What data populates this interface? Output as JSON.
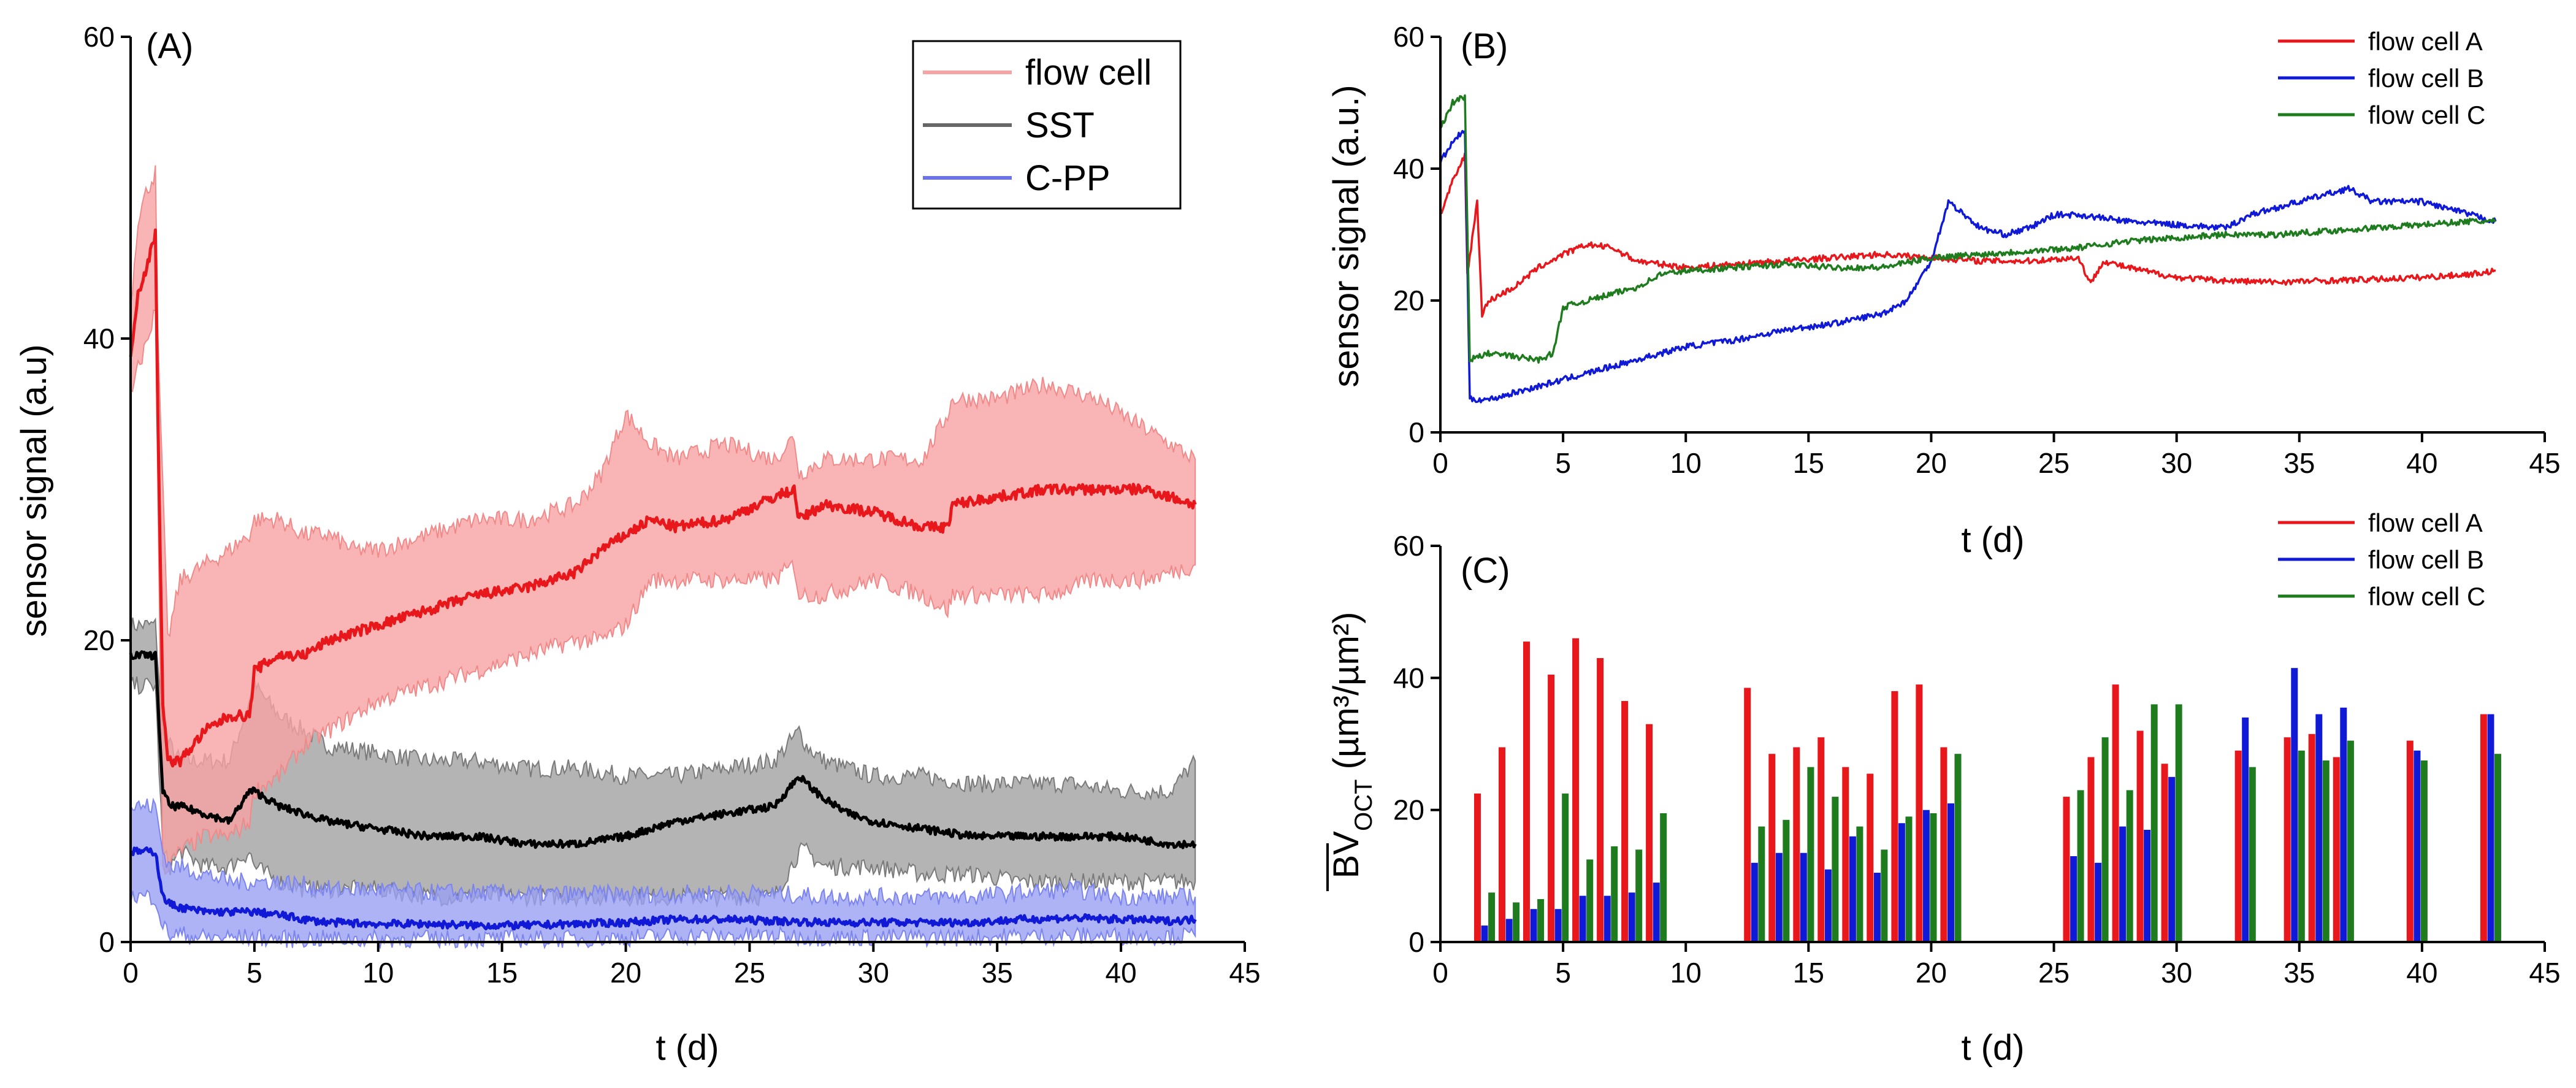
{
  "colors": {
    "red": "#e8171b",
    "red_band": "#f7a3a3",
    "black": "#000000",
    "grey_band": "#9b9b9b",
    "blue": "#1019d6",
    "blue_band": "#9aa0f2",
    "green": "#1e7b1e"
  },
  "chart_data": [
    {
      "id": "A",
      "type": "area",
      "panel_label": "(A)",
      "xlabel": "t (d)",
      "ylabel": "sensor signal (a.u)",
      "xlim": [
        0,
        45
      ],
      "ylim": [
        0,
        60
      ],
      "xticks": [
        0,
        5,
        10,
        15,
        20,
        25,
        30,
        35,
        40,
        45
      ],
      "yticks": [
        0,
        20,
        40,
        60
      ],
      "xtick_labels": [
        "0",
        "5",
        "10",
        "15",
        "20",
        "25",
        "30",
        "35",
        "40",
        "45"
      ],
      "ytick_labels": [
        "0",
        "20",
        "40",
        "60"
      ],
      "legend": [
        "flow cell",
        "SST",
        "C-PP"
      ],
      "legend_position": "top-right",
      "series": [
        {
          "name": "flow cell",
          "x": [
            0,
            0.3,
            0.7,
            1.0,
            1.1,
            1.3,
            1.5,
            2,
            3,
            4,
            4.8,
            5,
            6,
            7,
            8,
            9,
            10,
            12,
            14,
            16,
            18,
            19,
            20,
            21,
            22,
            24,
            26,
            26.8,
            27,
            28,
            30,
            32,
            33,
            33.2,
            35,
            37,
            39,
            41,
            43
          ],
          "mean": [
            39,
            43,
            45,
            47,
            35,
            16,
            12,
            12,
            14,
            15,
            15,
            18,
            19,
            19,
            20,
            20.5,
            21,
            22,
            23,
            23.5,
            24.5,
            26,
            27,
            28,
            27.5,
            28,
            29.5,
            30,
            28,
            29,
            28.5,
            27.5,
            27.5,
            29,
            29.5,
            30,
            30,
            30,
            29
          ],
          "upper": [
            42,
            48,
            50,
            51,
            40,
            30,
            20,
            24,
            25,
            26,
            27,
            28,
            28,
            27,
            27,
            26,
            26,
            27,
            28,
            28,
            29,
            31,
            35,
            33,
            32,
            33,
            32,
            33.5,
            31,
            32,
            32,
            32,
            35,
            36,
            36,
            37,
            36,
            34,
            32
          ],
          "lower": [
            36,
            38,
            40,
            42,
            30,
            5,
            5,
            6,
            7,
            7,
            8,
            10,
            11,
            13,
            14,
            15,
            16,
            17,
            18,
            19,
            20,
            20,
            21,
            24,
            24,
            24,
            24,
            25,
            23,
            23,
            24,
            23,
            22,
            23,
            23,
            23,
            24,
            24,
            25
          ]
        },
        {
          "name": "SST",
          "x": [
            0,
            0.5,
            1.0,
            1.3,
            1.6,
            2,
            3,
            4,
            4.8,
            5,
            6,
            7,
            8,
            10,
            12,
            14,
            16,
            18,
            20,
            22,
            24,
            26,
            27,
            27.3,
            28,
            29,
            30,
            32,
            34,
            36,
            38,
            40,
            42,
            43
          ],
          "mean": [
            19,
            19,
            19,
            10,
            9,
            9,
            8.5,
            8,
            10,
            10,
            9,
            8.5,
            8,
            7.5,
            7,
            7,
            6.5,
            6.5,
            7,
            8,
            8.5,
            9,
            11,
            10.5,
            9.5,
            8.5,
            8,
            7.5,
            7,
            7,
            7,
            7,
            6.5,
            6.5
          ],
          "upper": [
            21,
            21,
            21,
            14,
            13,
            12,
            12,
            12,
            16,
            17,
            15,
            14,
            13,
            12.5,
            12,
            12,
            11.5,
            11.5,
            11,
            11,
            11.5,
            12,
            14,
            13,
            12,
            11.5,
            11,
            11,
            10.5,
            10.5,
            10.5,
            10,
            10,
            12
          ],
          "lower": [
            17,
            17,
            17,
            6,
            5,
            6,
            5,
            5,
            6,
            5,
            4,
            3.5,
            3.5,
            3.5,
            3,
            3,
            3,
            3,
            3,
            3,
            3,
            3,
            6,
            6,
            5,
            5,
            5,
            4.5,
            4.5,
            4,
            4,
            4,
            4,
            4
          ]
        },
        {
          "name": "C-PP",
          "x": [
            0,
            0.5,
            1.0,
            1.3,
            1.6,
            2,
            3,
            4,
            5,
            6,
            7,
            8,
            10,
            12,
            14,
            16,
            18,
            20,
            22,
            24,
            26,
            28,
            30,
            32,
            34,
            36,
            38,
            40,
            42,
            43
          ],
          "mean": [
            6,
            6,
            6,
            3,
            2.5,
            2.3,
            2,
            2,
            2,
            1.8,
            1.5,
            1.3,
            1.2,
            1.2,
            1.1,
            1.1,
            1.2,
            1.3,
            1.5,
            1.5,
            1.4,
            1.3,
            1.3,
            1.3,
            1.3,
            1.5,
            1.6,
            1.5,
            1.4,
            1.5
          ],
          "upper": [
            9,
            9,
            9,
            6,
            5,
            5,
            4.5,
            4,
            4,
            4,
            3.8,
            3.5,
            3.5,
            3.3,
            3.3,
            3.2,
            3.2,
            3.2,
            3.2,
            3.3,
            3.2,
            3,
            3,
            3,
            3,
            3.3,
            3.5,
            3,
            3,
            3
          ],
          "lower": [
            3,
            3,
            3,
            1,
            0.5,
            0.5,
            0.3,
            0.3,
            0.3,
            0.2,
            0.2,
            0.2,
            0.2,
            0.2,
            0.2,
            0.2,
            0.2,
            0.3,
            0.4,
            0.4,
            0.4,
            0.3,
            0.3,
            0.3,
            0.3,
            0.4,
            0.4,
            0.4,
            0.4,
            0.4
          ]
        }
      ]
    },
    {
      "id": "B",
      "type": "line",
      "panel_label": "(B)",
      "xlabel": "t (d)",
      "ylabel": "sensor signal (a.u.)",
      "xlim": [
        0,
        45
      ],
      "ylim": [
        0,
        60
      ],
      "xticks": [
        0,
        5,
        10,
        15,
        20,
        25,
        30,
        35,
        40,
        45
      ],
      "yticks": [
        0,
        20,
        40,
        60
      ],
      "xtick_labels": [
        "0",
        "5",
        "10",
        "15",
        "20",
        "25",
        "30",
        "35",
        "40",
        "45"
      ],
      "ytick_labels": [
        "0",
        "20",
        "40",
        "60"
      ],
      "legend": [
        "flow cell A",
        "flow cell B",
        "flow cell C"
      ],
      "legend_position": "top-right",
      "series": [
        {
          "name": "flow cell A",
          "x": [
            0,
            0.5,
            1.0,
            1.1,
            1.5,
            1.7,
            2,
            3,
            4,
            5,
            6,
            7,
            8,
            10,
            12,
            14,
            16,
            18,
            20,
            22,
            24,
            26,
            26.5,
            27,
            28,
            30,
            32,
            34,
            36,
            38,
            40,
            42,
            43
          ],
          "y": [
            33,
            38,
            42,
            24,
            35,
            18,
            20,
            22,
            25,
            27,
            28.5,
            28,
            26,
            25,
            25.5,
            26,
            26.5,
            27,
            26.5,
            26,
            26,
            26.5,
            22.5,
            26,
            25,
            23.5,
            23,
            22.8,
            23,
            23.2,
            23.5,
            24,
            24.5
          ]
        },
        {
          "name": "flow cell B",
          "x": [
            0,
            0.5,
            1.0,
            1.2,
            2,
            3,
            4,
            5,
            6,
            8,
            10,
            12,
            14,
            16,
            18,
            19,
            20,
            20.7,
            22,
            23,
            24,
            25,
            26,
            28,
            30,
            32,
            33,
            34,
            35,
            36,
            37,
            38,
            40,
            42,
            43
          ],
          "y": [
            41,
            44,
            46,
            5,
            5,
            6,
            7,
            8,
            9,
            11,
            13,
            14,
            15.5,
            16.5,
            18,
            20,
            26,
            35,
            31,
            30,
            31,
            33,
            33,
            32,
            31.5,
            31,
            33,
            34,
            35,
            36,
            37,
            35,
            35,
            33,
            32
          ]
        },
        {
          "name": "flow cell C",
          "x": [
            0,
            0.5,
            1.0,
            1.2,
            2,
            3,
            4,
            4.6,
            5,
            6,
            8,
            9,
            10,
            12,
            14,
            16,
            18,
            20,
            22,
            24,
            26,
            28,
            30,
            32,
            34,
            36,
            38,
            40,
            42,
            43
          ],
          "y": [
            46,
            50,
            51,
            11,
            12,
            11.5,
            11,
            12,
            19,
            20,
            22,
            24,
            24.5,
            25,
            25.5,
            25,
            25,
            26.5,
            27,
            27.5,
            28,
            29,
            29.5,
            30,
            30,
            30.5,
            31,
            31.5,
            32,
            32
          ]
        }
      ]
    },
    {
      "id": "C",
      "type": "bar",
      "panel_label": "(C)",
      "xlabel": "t (d)",
      "ylabel_prefix": "BV",
      "ylabel_subscript": "OCT",
      "ylabel_suffix": " (µm³/µm²)",
      "xlim": [
        0,
        45
      ],
      "ylim": [
        0,
        60
      ],
      "xticks": [
        0,
        5,
        10,
        15,
        20,
        25,
        30,
        35,
        40,
        45
      ],
      "yticks": [
        0,
        20,
        40,
        60
      ],
      "xtick_labels": [
        "0",
        "5",
        "10",
        "15",
        "20",
        "25",
        "30",
        "35",
        "40",
        "45"
      ],
      "ytick_labels": [
        "0",
        "20",
        "40",
        "60"
      ],
      "legend": [
        "flow cell A",
        "flow cell B",
        "flow cell C"
      ],
      "legend_position": "top-right",
      "x": [
        1.8,
        2.8,
        3.8,
        4.8,
        5.8,
        6.8,
        7.8,
        8.8,
        12.8,
        13.8,
        14.8,
        15.8,
        16.8,
        17.8,
        18.8,
        19.8,
        20.8,
        25.8,
        26.8,
        27.8,
        28.8,
        29.8,
        32.8,
        34.8,
        35.8,
        36.8,
        39.8,
        42.8
      ],
      "series": [
        {
          "name": "flow cell A",
          "values": [
            22.5,
            29.5,
            45.5,
            40.5,
            46,
            43,
            36.5,
            33,
            38.5,
            28.5,
            29.5,
            31,
            26.5,
            25.5,
            38,
            39,
            29.5,
            22,
            28,
            39,
            32,
            27,
            29,
            31,
            31.5,
            28,
            30.5,
            34.5
          ]
        },
        {
          "name": "flow cell B",
          "values": [
            2.5,
            3.5,
            5,
            5,
            7,
            7,
            7.5,
            9,
            12,
            13.5,
            13.5,
            11,
            16,
            10.5,
            18,
            20,
            21,
            13,
            12,
            17.5,
            17,
            25,
            34,
            41.5,
            34.5,
            35.5,
            29,
            34.5
          ]
        },
        {
          "name": "flow cell C",
          "values": [
            7.5,
            6,
            6.5,
            22.5,
            12.5,
            14.5,
            14,
            19.5,
            17.5,
            18.5,
            26.5,
            22,
            17.5,
            14,
            19,
            19.5,
            28.5,
            23,
            31,
            23,
            36,
            36,
            26.5,
            29,
            27.5,
            30.5,
            27.5,
            28.5
          ]
        }
      ]
    }
  ]
}
